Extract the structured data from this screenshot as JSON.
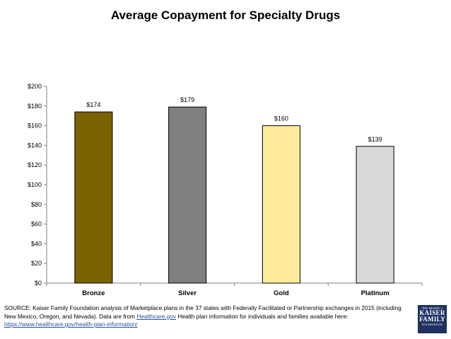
{
  "chart_data": {
    "type": "bar",
    "title": "Average Copayment for Specialty Drugs",
    "categories": [
      "Bronze",
      "Silver",
      "Gold",
      "Platinum"
    ],
    "values": [
      174,
      179,
      160,
      139
    ],
    "data_labels": [
      "$174",
      "$179",
      "$160",
      "$139"
    ],
    "bar_colors": [
      "#7a6200",
      "#808080",
      "#ffeb9b",
      "#d9d9d9"
    ],
    "xlabel": "",
    "ylabel": "",
    "ylim": [
      0,
      200
    ],
    "yticks": [
      0,
      20,
      40,
      60,
      80,
      100,
      120,
      140,
      160,
      180,
      200
    ],
    "ytick_labels": [
      "$0",
      "$20",
      "$40",
      "$60",
      "$80",
      "$100",
      "$120",
      "$140",
      "$160",
      "$180",
      "$200"
    ],
    "grid": false,
    "legend": "none"
  },
  "source": {
    "prefix": "SOURCE: Kaiser Family Foundation analysis of Marketplace plans in the 37 states with Federally Facilitated or Partnership exchanges in 2015 (including New Mexico, Oregon, and Nevada). Data are from ",
    "link1": "Healthcare.gov",
    "middle": " Health plan information for individuals and families available here: ",
    "link2": "https://www.healthcare.gov/health-plan-information/"
  },
  "logo": {
    "line1": "THE HENRY J.",
    "line2": "KAISER",
    "line3": "FAMILY",
    "line4": "FOUNDATION"
  }
}
